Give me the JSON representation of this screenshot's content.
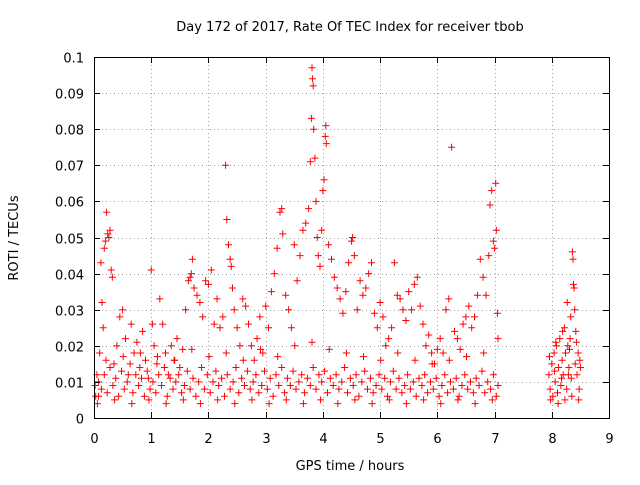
{
  "chart_data": {
    "type": "scatter",
    "title": "Day 172 of 2017, Rate Of TEC Index for receiver tbob",
    "xlabel": "GPS time / hours",
    "ylabel": "ROTI / TECUs",
    "xlim": [
      0,
      9
    ],
    "ylim": [
      0,
      0.1
    ],
    "x_ticks": [
      "0",
      "1",
      "2",
      "3",
      "4",
      "5",
      "6",
      "7",
      "8",
      "9"
    ],
    "y_ticks": [
      "0",
      "0.01",
      "0.02",
      "0.03",
      "0.04",
      "0.05",
      "0.06",
      "0.07",
      "0.08",
      "0.09",
      "0.1"
    ],
    "grid": true,
    "marker": "+",
    "color": "#ff0000",
    "points": [
      [
        0.02,
        0.009
      ],
      [
        0.05,
        0.012
      ],
      [
        0.08,
        0.006
      ],
      [
        0.1,
        0.018
      ],
      [
        0.12,
        0.043
      ],
      [
        0.14,
        0.032
      ],
      [
        0.16,
        0.025
      ],
      [
        0.18,
        0.047
      ],
      [
        0.2,
        0.049
      ],
      [
        0.22,
        0.057
      ],
      [
        0.24,
        0.051
      ],
      [
        0.26,
        0.05
      ],
      [
        0.28,
        0.052
      ],
      [
        0.3,
        0.041
      ],
      [
        0.32,
        0.039
      ],
      [
        0.35,
        0.015
      ],
      [
        0.4,
        0.02
      ],
      [
        0.45,
        0.028
      ],
      [
        0.5,
        0.03
      ],
      [
        0.55,
        0.022
      ],
      [
        0.6,
        0.012
      ],
      [
        0.65,
        0.026
      ],
      [
        0.7,
        0.018
      ],
      [
        0.75,
        0.021
      ],
      [
        0.8,
        0.014
      ],
      [
        0.85,
        0.024
      ],
      [
        0.9,
        0.016
      ],
      [
        0.95,
        0.011
      ],
      [
        1.0,
        0.041
      ],
      [
        1.02,
        0.026
      ],
      [
        1.05,
        0.02
      ],
      [
        1.1,
        0.015
      ],
      [
        1.15,
        0.033
      ],
      [
        1.2,
        0.026
      ],
      [
        1.25,
        0.018
      ],
      [
        1.3,
        0.012
      ],
      [
        1.35,
        0.02
      ],
      [
        1.4,
        0.016
      ],
      [
        1.45,
        0.022
      ],
      [
        1.5,
        0.014
      ],
      [
        1.55,
        0.019
      ],
      [
        1.6,
        0.03
      ],
      [
        1.65,
        0.038
      ],
      [
        1.68,
        0.039
      ],
      [
        1.7,
        0.04
      ],
      [
        1.72,
        0.044
      ],
      [
        1.75,
        0.036
      ],
      [
        1.8,
        0.034
      ],
      [
        1.85,
        0.032
      ],
      [
        1.9,
        0.028
      ],
      [
        1.95,
        0.038
      ],
      [
        2.0,
        0.037
      ],
      [
        2.05,
        0.041
      ],
      [
        2.1,
        0.026
      ],
      [
        2.15,
        0.033
      ],
      [
        2.2,
        0.025
      ],
      [
        2.25,
        0.028
      ],
      [
        2.3,
        0.07
      ],
      [
        2.32,
        0.055
      ],
      [
        2.35,
        0.048
      ],
      [
        2.38,
        0.044
      ],
      [
        2.4,
        0.042
      ],
      [
        2.42,
        0.036
      ],
      [
        2.45,
        0.03
      ],
      [
        2.5,
        0.025
      ],
      [
        2.55,
        0.02
      ],
      [
        2.6,
        0.033
      ],
      [
        2.65,
        0.031
      ],
      [
        2.7,
        0.026
      ],
      [
        2.75,
        0.02
      ],
      [
        2.8,
        0.016
      ],
      [
        2.85,
        0.022
      ],
      [
        2.9,
        0.028
      ],
      [
        2.95,
        0.018
      ],
      [
        3.0,
        0.031
      ],
      [
        3.05,
        0.025
      ],
      [
        3.1,
        0.035
      ],
      [
        3.15,
        0.04
      ],
      [
        3.2,
        0.047
      ],
      [
        3.25,
        0.057
      ],
      [
        3.28,
        0.058
      ],
      [
        3.3,
        0.051
      ],
      [
        3.35,
        0.034
      ],
      [
        3.4,
        0.03
      ],
      [
        3.45,
        0.025
      ],
      [
        3.5,
        0.048
      ],
      [
        3.55,
        0.038
      ],
      [
        3.6,
        0.045
      ],
      [
        3.65,
        0.052
      ],
      [
        3.7,
        0.054
      ],
      [
        3.75,
        0.058
      ],
      [
        3.78,
        0.071
      ],
      [
        3.8,
        0.083
      ],
      [
        3.81,
        0.097
      ],
      [
        3.82,
        0.094
      ],
      [
        3.83,
        0.092
      ],
      [
        3.84,
        0.08
      ],
      [
        3.86,
        0.072
      ],
      [
        3.88,
        0.06
      ],
      [
        3.9,
        0.05
      ],
      [
        3.92,
        0.045
      ],
      [
        3.95,
        0.042
      ],
      [
        3.98,
        0.052
      ],
      [
        4.0,
        0.063
      ],
      [
        4.02,
        0.066
      ],
      [
        4.04,
        0.078
      ],
      [
        4.05,
        0.081
      ],
      [
        4.06,
        0.076
      ],
      [
        4.1,
        0.048
      ],
      [
        4.15,
        0.044
      ],
      [
        4.2,
        0.039
      ],
      [
        4.25,
        0.036
      ],
      [
        4.3,
        0.033
      ],
      [
        4.35,
        0.029
      ],
      [
        4.4,
        0.035
      ],
      [
        4.45,
        0.043
      ],
      [
        4.5,
        0.049
      ],
      [
        4.52,
        0.05
      ],
      [
        4.55,
        0.045
      ],
      [
        4.6,
        0.03
      ],
      [
        4.65,
        0.038
      ],
      [
        4.7,
        0.034
      ],
      [
        4.75,
        0.036
      ],
      [
        4.8,
        0.04
      ],
      [
        4.85,
        0.043
      ],
      [
        4.9,
        0.029
      ],
      [
        4.95,
        0.025
      ],
      [
        5.0,
        0.032
      ],
      [
        5.05,
        0.028
      ],
      [
        5.1,
        0.02
      ],
      [
        5.15,
        0.022
      ],
      [
        5.2,
        0.025
      ],
      [
        5.25,
        0.043
      ],
      [
        5.3,
        0.034
      ],
      [
        5.35,
        0.033
      ],
      [
        5.4,
        0.03
      ],
      [
        5.45,
        0.027
      ],
      [
        5.5,
        0.035
      ],
      [
        5.55,
        0.03
      ],
      [
        5.6,
        0.037
      ],
      [
        5.65,
        0.039
      ],
      [
        5.7,
        0.031
      ],
      [
        5.75,
        0.026
      ],
      [
        5.8,
        0.02
      ],
      [
        5.85,
        0.023
      ],
      [
        5.9,
        0.018
      ],
      [
        5.95,
        0.015
      ],
      [
        6.0,
        0.019
      ],
      [
        6.05,
        0.022
      ],
      [
        6.1,
        0.018
      ],
      [
        6.15,
        0.03
      ],
      [
        6.2,
        0.033
      ],
      [
        6.25,
        0.075
      ],
      [
        6.3,
        0.024
      ],
      [
        6.35,
        0.022
      ],
      [
        6.4,
        0.019
      ],
      [
        6.45,
        0.026
      ],
      [
        6.5,
        0.028
      ],
      [
        6.55,
        0.031
      ],
      [
        6.6,
        0.025
      ],
      [
        6.65,
        0.028
      ],
      [
        6.7,
        0.034
      ],
      [
        6.75,
        0.044
      ],
      [
        6.8,
        0.039
      ],
      [
        6.85,
        0.034
      ],
      [
        6.9,
        0.045
      ],
      [
        6.92,
        0.059
      ],
      [
        6.95,
        0.063
      ],
      [
        6.98,
        0.049
      ],
      [
        7.0,
        0.047
      ],
      [
        7.02,
        0.065
      ],
      [
        7.03,
        0.052
      ],
      [
        7.05,
        0.029
      ],
      [
        7.06,
        0.022
      ],
      [
        0.03,
        0.006
      ],
      [
        0.08,
        0.01
      ],
      [
        0.13,
        0.008
      ],
      [
        0.18,
        0.012
      ],
      [
        0.23,
        0.007
      ],
      [
        0.28,
        0.014
      ],
      [
        0.33,
        0.009
      ],
      [
        0.38,
        0.011
      ],
      [
        0.43,
        0.006
      ],
      [
        0.48,
        0.013
      ],
      [
        0.53,
        0.008
      ],
      [
        0.58,
        0.01
      ],
      [
        0.63,
        0.015
      ],
      [
        0.68,
        0.007
      ],
      [
        0.73,
        0.012
      ],
      [
        0.78,
        0.009
      ],
      [
        0.83,
        0.011
      ],
      [
        0.88,
        0.006
      ],
      [
        0.93,
        0.013
      ],
      [
        0.98,
        0.008
      ],
      [
        1.03,
        0.01
      ],
      [
        1.08,
        0.007
      ],
      [
        1.13,
        0.012
      ],
      [
        1.18,
        0.009
      ],
      [
        1.23,
        0.014
      ],
      [
        1.28,
        0.006
      ],
      [
        1.33,
        0.011
      ],
      [
        1.38,
        0.008
      ],
      [
        1.43,
        0.01
      ],
      [
        1.48,
        0.012
      ],
      [
        1.53,
        0.007
      ],
      [
        1.58,
        0.009
      ],
      [
        1.63,
        0.013
      ],
      [
        1.68,
        0.008
      ],
      [
        1.73,
        0.011
      ],
      [
        1.78,
        0.006
      ],
      [
        1.83,
        0.01
      ],
      [
        1.88,
        0.014
      ],
      [
        1.93,
        0.008
      ],
      [
        1.98,
        0.012
      ],
      [
        2.03,
        0.007
      ],
      [
        2.08,
        0.01
      ],
      [
        2.13,
        0.013
      ],
      [
        2.18,
        0.009
      ],
      [
        2.23,
        0.011
      ],
      [
        2.28,
        0.006
      ],
      [
        2.33,
        0.012
      ],
      [
        2.38,
        0.008
      ],
      [
        2.43,
        0.01
      ],
      [
        2.48,
        0.014
      ],
      [
        2.53,
        0.007
      ],
      [
        2.58,
        0.011
      ],
      [
        2.63,
        0.009
      ],
      [
        2.68,
        0.013
      ],
      [
        2.73,
        0.008
      ],
      [
        2.78,
        0.01
      ],
      [
        2.83,
        0.012
      ],
      [
        2.88,
        0.007
      ],
      [
        2.93,
        0.009
      ],
      [
        2.98,
        0.013
      ],
      [
        3.03,
        0.008
      ],
      [
        3.08,
        0.011
      ],
      [
        3.13,
        0.006
      ],
      [
        3.18,
        0.012
      ],
      [
        3.23,
        0.009
      ],
      [
        3.28,
        0.014
      ],
      [
        3.33,
        0.007
      ],
      [
        3.38,
        0.011
      ],
      [
        3.43,
        0.009
      ],
      [
        3.48,
        0.013
      ],
      [
        3.53,
        0.008
      ],
      [
        3.58,
        0.01
      ],
      [
        3.63,
        0.012
      ],
      [
        3.68,
        0.007
      ],
      [
        3.73,
        0.011
      ],
      [
        3.78,
        0.009
      ],
      [
        3.83,
        0.014
      ],
      [
        3.88,
        0.008
      ],
      [
        3.93,
        0.012
      ],
      [
        3.98,
        0.01
      ],
      [
        4.03,
        0.013
      ],
      [
        4.08,
        0.007
      ],
      [
        4.13,
        0.011
      ],
      [
        4.18,
        0.009
      ],
      [
        4.23,
        0.012
      ],
      [
        4.28,
        0.008
      ],
      [
        4.33,
        0.01
      ],
      [
        4.38,
        0.014
      ],
      [
        4.43,
        0.007
      ],
      [
        4.48,
        0.011
      ],
      [
        4.53,
        0.009
      ],
      [
        4.58,
        0.012
      ],
      [
        4.63,
        0.006
      ],
      [
        4.68,
        0.01
      ],
      [
        4.73,
        0.013
      ],
      [
        4.78,
        0.008
      ],
      [
        4.83,
        0.011
      ],
      [
        4.88,
        0.007
      ],
      [
        4.93,
        0.009
      ],
      [
        4.98,
        0.012
      ],
      [
        5.03,
        0.008
      ],
      [
        5.08,
        0.011
      ],
      [
        5.13,
        0.006
      ],
      [
        5.18,
        0.01
      ],
      [
        5.23,
        0.013
      ],
      [
        5.28,
        0.008
      ],
      [
        5.33,
        0.011
      ],
      [
        5.38,
        0.007
      ],
      [
        5.43,
        0.009
      ],
      [
        5.48,
        0.012
      ],
      [
        5.53,
        0.008
      ],
      [
        5.58,
        0.01
      ],
      [
        5.63,
        0.006
      ],
      [
        5.68,
        0.011
      ],
      [
        5.73,
        0.009
      ],
      [
        5.78,
        0.012
      ],
      [
        5.83,
        0.007
      ],
      [
        5.88,
        0.01
      ],
      [
        5.93,
        0.008
      ],
      [
        5.98,
        0.011
      ],
      [
        6.03,
        0.006
      ],
      [
        6.08,
        0.009
      ],
      [
        6.13,
        0.012
      ],
      [
        6.18,
        0.007
      ],
      [
        6.23,
        0.01
      ],
      [
        6.28,
        0.008
      ],
      [
        6.33,
        0.011
      ],
      [
        6.38,
        0.006
      ],
      [
        6.43,
        0.009
      ],
      [
        6.48,
        0.012
      ],
      [
        6.53,
        0.008
      ],
      [
        6.58,
        0.01
      ],
      [
        6.63,
        0.007
      ],
      [
        6.68,
        0.011
      ],
      [
        6.73,
        0.009
      ],
      [
        6.78,
        0.013
      ],
      [
        6.83,
        0.007
      ],
      [
        6.88,
        0.01
      ],
      [
        6.93,
        0.008
      ],
      [
        6.98,
        0.012
      ],
      [
        7.03,
        0.006
      ],
      [
        7.06,
        0.009
      ],
      [
        0.06,
        0.004
      ],
      [
        0.21,
        0.016
      ],
      [
        0.36,
        0.005
      ],
      [
        0.51,
        0.017
      ],
      [
        0.66,
        0.004
      ],
      [
        0.81,
        0.018
      ],
      [
        0.96,
        0.005
      ],
      [
        1.11,
        0.017
      ],
      [
        1.26,
        0.004
      ],
      [
        1.41,
        0.016
      ],
      [
        1.56,
        0.005
      ],
      [
        1.71,
        0.019
      ],
      [
        1.86,
        0.004
      ],
      [
        2.01,
        0.017
      ],
      [
        2.16,
        0.005
      ],
      [
        2.31,
        0.018
      ],
      [
        2.46,
        0.004
      ],
      [
        2.61,
        0.016
      ],
      [
        2.76,
        0.005
      ],
      [
        2.91,
        0.019
      ],
      [
        3.06,
        0.004
      ],
      [
        3.21,
        0.017
      ],
      [
        3.36,
        0.005
      ],
      [
        3.51,
        0.02
      ],
      [
        3.66,
        0.004
      ],
      [
        3.81,
        0.021
      ],
      [
        3.96,
        0.005
      ],
      [
        4.11,
        0.019
      ],
      [
        4.26,
        0.004
      ],
      [
        4.41,
        0.018
      ],
      [
        4.56,
        0.005
      ],
      [
        4.71,
        0.017
      ],
      [
        4.86,
        0.004
      ],
      [
        5.01,
        0.016
      ],
      [
        5.16,
        0.005
      ],
      [
        5.31,
        0.018
      ],
      [
        5.46,
        0.004
      ],
      [
        5.61,
        0.016
      ],
      [
        5.76,
        0.005
      ],
      [
        5.91,
        0.015
      ],
      [
        6.06,
        0.004
      ],
      [
        6.21,
        0.016
      ],
      [
        6.36,
        0.005
      ],
      [
        6.51,
        0.017
      ],
      [
        6.66,
        0.004
      ],
      [
        6.81,
        0.018
      ],
      [
        6.96,
        0.005
      ],
      [
        7.95,
        0.012
      ],
      [
        7.97,
        0.008
      ],
      [
        8.0,
        0.015
      ],
      [
        8.02,
        0.006
      ],
      [
        8.04,
        0.018
      ],
      [
        8.06,
        0.01
      ],
      [
        8.08,
        0.02
      ],
      [
        8.1,
        0.007
      ],
      [
        8.12,
        0.014
      ],
      [
        8.14,
        0.022
      ],
      [
        8.16,
        0.009
      ],
      [
        8.18,
        0.016
      ],
      [
        8.2,
        0.012
      ],
      [
        8.22,
        0.025
      ],
      [
        8.24,
        0.018
      ],
      [
        8.26,
        0.008
      ],
      [
        8.28,
        0.02
      ],
      [
        8.3,
        0.014
      ],
      [
        8.32,
        0.022
      ],
      [
        8.34,
        0.011
      ],
      [
        8.36,
        0.046
      ],
      [
        8.37,
        0.044
      ],
      [
        8.38,
        0.037
      ],
      [
        8.39,
        0.036
      ],
      [
        8.4,
        0.03
      ],
      [
        8.42,
        0.024
      ],
      [
        8.44,
        0.012
      ],
      [
        8.46,
        0.018
      ],
      [
        8.48,
        0.008
      ],
      [
        8.5,
        0.014
      ],
      [
        7.98,
        0.005
      ],
      [
        8.05,
        0.013
      ],
      [
        8.11,
        0.004
      ],
      [
        8.17,
        0.011
      ],
      [
        8.23,
        0.005
      ],
      [
        8.29,
        0.012
      ],
      [
        8.35,
        0.006
      ],
      [
        8.41,
        0.015
      ],
      [
        8.47,
        0.005
      ],
      [
        7.96,
        0.017
      ],
      [
        8.07,
        0.021
      ],
      [
        8.19,
        0.024
      ],
      [
        8.31,
        0.019
      ],
      [
        8.43,
        0.021
      ],
      [
        8.49,
        0.016
      ],
      [
        8.27,
        0.032
      ],
      [
        8.33,
        0.028
      ]
    ]
  }
}
